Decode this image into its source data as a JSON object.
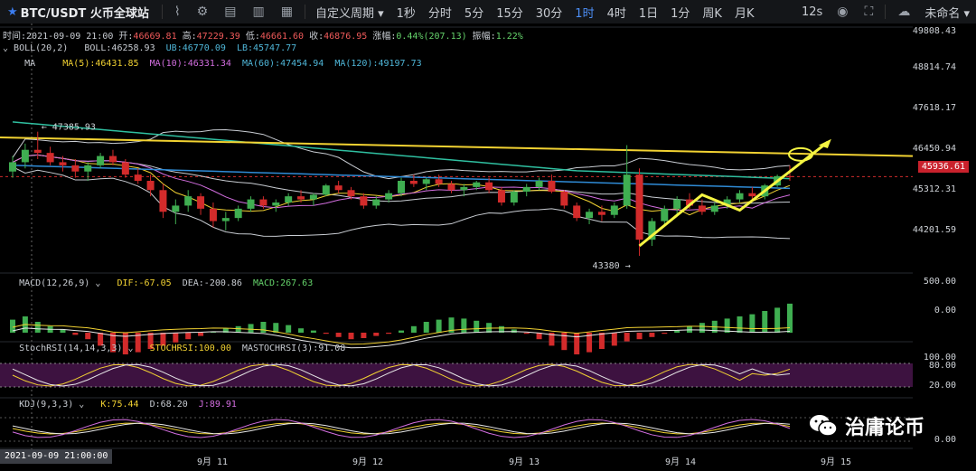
{
  "toolbar": {
    "symbol": "BTC/USDT 火币全球站",
    "custom_period": "自定义周期",
    "periods": [
      "1秒",
      "分时",
      "5分",
      "15分",
      "30分",
      "1时",
      "4时",
      "1日",
      "1分",
      "周K",
      "月K"
    ],
    "active_period": "1时",
    "refresh": "12s",
    "user": "未命名"
  },
  "info": {
    "time_label": "时间:",
    "time": "2021-09-09 21:00",
    "open_label": "开:",
    "open": "46669.81",
    "high_label": "高:",
    "high": "47229.39",
    "low_label": "低:",
    "low": "46661.60",
    "close_label": "收:",
    "close": "46876.95",
    "change_label": "涨幅:",
    "change": "0.44%(207.13)",
    "amplitude_label": "振幅:",
    "amplitude": "1.22%"
  },
  "boll": {
    "name": "BOLL(20,2)",
    "boll": "BOLL:46258.93",
    "ub": "UB:46770.09",
    "lb": "LB:45747.77"
  },
  "ma": {
    "name": "MA",
    "ma5": "MA(5):46431.85",
    "ma10": "MA(10):46331.34",
    "ma60": "MA(60):47454.94",
    "ma120": "MA(120):49197.73"
  },
  "macd": {
    "name": "MACD(12,26,9)",
    "dif": "DIF:-67.05",
    "dea": "DEA:-200.86",
    "macd": "MACD:267.63"
  },
  "stoch": {
    "name": "StochRSI(14,14,3,3)",
    "k": "STOCHRSI:100.00",
    "d": "MASTOCHRSI(3):91.08"
  },
  "kdj": {
    "name": "KDJ(9,3,3)",
    "k": "K:75.44",
    "d": "D:68.20",
    "j": "J:89.91"
  },
  "annotations": {
    "high": "47385.93",
    "low": "43380"
  },
  "price_axis": [
    "49808.43",
    "48814.74",
    "47618.17",
    "46450.94",
    "45312.31",
    "44201.59"
  ],
  "current_price": "45936.61",
  "macd_axis": [
    "500.00",
    "0.00"
  ],
  "stoch_axis": [
    "100.00",
    "80.00",
    "20.00"
  ],
  "kdj_axis": [
    "0.00"
  ],
  "x_axis": [
    "9月 11",
    "9月 12",
    "9月 13",
    "9月 14",
    "9月 15"
  ],
  "x_date": "2021-09-09 21:00:00",
  "watermark": "治庸论币",
  "colors": {
    "up": "#3fae51",
    "down": "#d22b2b",
    "ma60": "#2fbfa0",
    "ma120": "#2f8bd6",
    "trendline": "#f2d232",
    "arrow": "#f5f542",
    "stoch_band": "#3d1240"
  },
  "chart_data": {
    "type": "candlestick",
    "title": "BTC/USDT",
    "interval": "1时",
    "ylim": [
      43000,
      50000
    ],
    "candles": [
      [
        46100,
        46600,
        45900,
        46400
      ],
      [
        46400,
        47000,
        46200,
        46800
      ],
      [
        46800,
        47385,
        46500,
        46700
      ],
      [
        46700,
        46900,
        46300,
        46400
      ],
      [
        46400,
        46600,
        46100,
        46300
      ],
      [
        46300,
        46500,
        45900,
        46100
      ],
      [
        46100,
        46400,
        45800,
        46300
      ],
      [
        46300,
        46700,
        46200,
        46600
      ],
      [
        46600,
        46800,
        46300,
        46400
      ],
      [
        46400,
        46500,
        45900,
        46000
      ],
      [
        46000,
        46200,
        45700,
        45800
      ],
      [
        45800,
        46000,
        45300,
        45500
      ],
      [
        45500,
        45700,
        44600,
        44800
      ],
      [
        44800,
        45200,
        44400,
        45000
      ],
      [
        45000,
        45500,
        44800,
        45300
      ],
      [
        45300,
        45400,
        44700,
        44900
      ],
      [
        44900,
        45100,
        44300,
        44500
      ],
      [
        44500,
        44800,
        44200,
        44600
      ],
      [
        44600,
        45000,
        44500,
        44900
      ],
      [
        44900,
        45300,
        44800,
        45200
      ],
      [
        45200,
        45300,
        44900,
        45000
      ],
      [
        45000,
        45200,
        44800,
        45100
      ],
      [
        45100,
        45400,
        45000,
        45300
      ],
      [
        45300,
        45500,
        45100,
        45200
      ],
      [
        45200,
        45400,
        45000,
        45350
      ],
      [
        45350,
        45700,
        45300,
        45650
      ],
      [
        45650,
        45800,
        45400,
        45500
      ],
      [
        45500,
        45600,
        45200,
        45300
      ],
      [
        45300,
        45400,
        44900,
        45000
      ],
      [
        45000,
        45300,
        44900,
        45200
      ],
      [
        45200,
        45500,
        45100,
        45400
      ],
      [
        45400,
        45900,
        45300,
        45800
      ],
      [
        45800,
        46000,
        45600,
        45700
      ],
      [
        45700,
        45900,
        45500,
        45850
      ],
      [
        45850,
        46000,
        45600,
        45700
      ],
      [
        45700,
        45800,
        45400,
        45500
      ],
      [
        45500,
        45700,
        45300,
        45600
      ],
      [
        45600,
        45800,
        45500,
        45750
      ],
      [
        45750,
        45900,
        45400,
        45500
      ],
      [
        45500,
        45600,
        45000,
        45100
      ],
      [
        45100,
        45500,
        45000,
        45450
      ],
      [
        45450,
        45700,
        45300,
        45600
      ],
      [
        45600,
        45900,
        45500,
        45800
      ],
      [
        45800,
        46000,
        45400,
        45450
      ],
      [
        45450,
        45500,
        44900,
        45000
      ],
      [
        45000,
        45100,
        44500,
        44600
      ],
      [
        44600,
        44900,
        44400,
        44800
      ],
      [
        44800,
        45000,
        44500,
        44700
      ],
      [
        44700,
        45100,
        44600,
        45000
      ],
      [
        45000,
        46950,
        44900,
        46000
      ],
      [
        46000,
        46200,
        43380,
        43900
      ],
      [
        43900,
        44600,
        43700,
        44500
      ],
      [
        44500,
        45000,
        44400,
        44900
      ],
      [
        44900,
        45300,
        44700,
        45200
      ],
      [
        45200,
        45400,
        44900,
        45000
      ],
      [
        45000,
        45200,
        44700,
        44800
      ],
      [
        44800,
        45100,
        44700,
        45000
      ],
      [
        45000,
        45300,
        44900,
        45200
      ],
      [
        45200,
        45500,
        45100,
        45400
      ],
      [
        45400,
        45600,
        45200,
        45300
      ],
      [
        45300,
        45700,
        45200,
        45650
      ],
      [
        45650,
        46000,
        45600,
        45950
      ],
      [
        45950,
        46300,
        45800,
        45936.61
      ]
    ],
    "levels": {
      "ub_end": 45900,
      "lb_end": 44000
    },
    "trendline": {
      "start": 47200,
      "end": 46600
    },
    "macd_hist": [
      120,
      150,
      100,
      60,
      30,
      -20,
      -60,
      -120,
      -180,
      -200,
      -180,
      -150,
      -120,
      -90,
      -60,
      -30,
      10,
      40,
      60,
      80,
      100,
      90,
      70,
      40,
      20,
      -10,
      -40,
      -60,
      -50,
      -30,
      -10,
      20,
      60,
      100,
      120,
      140,
      130,
      110,
      90,
      60,
      30,
      -10,
      -60,
      -120,
      -160,
      -200,
      -180,
      -150,
      -120,
      -80,
      -60,
      -40,
      -10,
      20,
      60,
      90,
      110,
      130,
      150,
      170,
      200,
      230,
      267.63
    ]
  }
}
